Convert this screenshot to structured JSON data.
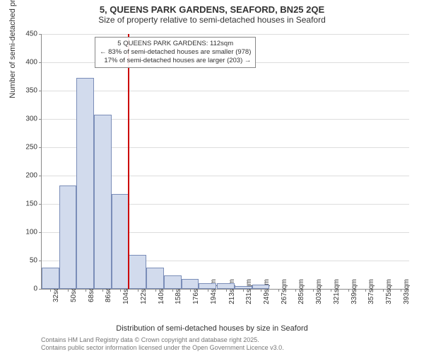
{
  "title": "5, QUEENS PARK GARDENS, SEAFORD, BN25 2QE",
  "subtitle": "Size of property relative to semi-detached houses in Seaford",
  "xlabel": "Distribution of semi-detached houses by size in Seaford",
  "ylabel": "Number of semi-detached properties",
  "footer_line1": "Contains HM Land Registry data © Crown copyright and database right 2025.",
  "footer_line2": "Contains public sector information licensed under the Open Government Licence v3.0.",
  "annotation": {
    "line1": "5 QUEENS PARK GARDENS: 112sqm",
    "line2": "← 83% of semi-detached houses are smaller (978)",
    "line3": "17% of semi-detached houses are larger (203) →"
  },
  "chart": {
    "type": "histogram",
    "background_color": "#ffffff",
    "grid_color": "#dddddd",
    "axis_color": "#888888",
    "bar_fill": "#d2dbed",
    "bar_border": "#7a8db8",
    "ref_line_color": "#cc0000",
    "ref_line_x": 112,
    "ylim": [
      0,
      450
    ],
    "ytick_step": 50,
    "yticks": [
      0,
      50,
      100,
      150,
      200,
      250,
      300,
      350,
      400,
      450
    ],
    "xlim": [
      23,
      402
    ],
    "xticks": [
      32,
      50,
      68,
      86,
      104,
      122,
      140,
      158,
      176,
      194,
      213,
      231,
      249,
      267,
      285,
      303,
      321,
      339,
      357,
      375,
      393
    ],
    "xtick_labels": [
      "32sqm",
      "50sqm",
      "68sqm",
      "86sqm",
      "104sqm",
      "122sqm",
      "140sqm",
      "158sqm",
      "176sqm",
      "194sqm",
      "213sqm",
      "231sqm",
      "249sqm",
      "267sqm",
      "285sqm",
      "303sqm",
      "321sqm",
      "339sqm",
      "357sqm",
      "375sqm",
      "393sqm"
    ],
    "bar_width_x": 18,
    "bars": [
      {
        "x": 32,
        "value": 38
      },
      {
        "x": 50,
        "value": 183
      },
      {
        "x": 68,
        "value": 372
      },
      {
        "x": 86,
        "value": 307
      },
      {
        "x": 104,
        "value": 167
      },
      {
        "x": 122,
        "value": 60
      },
      {
        "x": 140,
        "value": 38
      },
      {
        "x": 158,
        "value": 24
      },
      {
        "x": 176,
        "value": 18
      },
      {
        "x": 194,
        "value": 10
      },
      {
        "x": 213,
        "value": 10
      },
      {
        "x": 231,
        "value": 5
      },
      {
        "x": 249,
        "value": 8
      },
      {
        "x": 267,
        "value": 0
      },
      {
        "x": 285,
        "value": 0
      },
      {
        "x": 303,
        "value": 0
      },
      {
        "x": 321,
        "value": 0
      },
      {
        "x": 339,
        "value": 0
      },
      {
        "x": 357,
        "value": 0
      },
      {
        "x": 375,
        "value": 0
      },
      {
        "x": 393,
        "value": 0
      }
    ],
    "title_fontsize": 13,
    "subtitle_fontsize": 12,
    "label_fontsize": 11,
    "tick_fontsize": 10,
    "annotation_fontsize": 9.5
  }
}
